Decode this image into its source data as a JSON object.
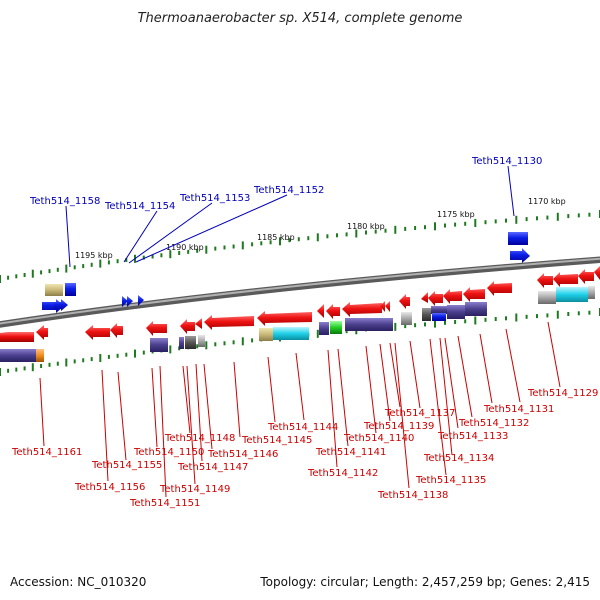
{
  "title": "Thermoanaerobacter sp. X514, complete genome",
  "accession": "Accession: NC_010320",
  "summary": "Topology: circular; Length: 2,457,259 bp; Genes: 2,415",
  "scale_labels": [
    "1170 kbp",
    "1175 kbp",
    "1180 kbp",
    "1185 kbp",
    "1190 kbp",
    "1195 kbp"
  ],
  "forward_genes": [
    "Teth514_1130",
    "Teth514_1152",
    "Teth514_1153",
    "Teth514_1154",
    "Teth514_1158"
  ],
  "reverse_genes": [
    "Teth514_1129",
    "Teth514_1131",
    "Teth514_1132",
    "Teth514_1133",
    "Teth514_1134",
    "Teth514_1135",
    "Teth514_1137",
    "Teth514_1138",
    "Teth514_1139",
    "Teth514_1140",
    "Teth514_1141",
    "Teth514_1142",
    "Teth514_1144",
    "Teth514_1145",
    "Teth514_1146",
    "Teth514_1147",
    "Teth514_1148",
    "Teth514_1149",
    "Teth514_1150",
    "Teth514_1151",
    "Teth514_1155",
    "Teth514_1156",
    "Teth514_1161"
  ],
  "colors": {
    "forward_gene": "#0a1ee6",
    "reverse_gene": "#ee1111",
    "backbone": "#808080",
    "tick": "#1e7a1e",
    "forward_label": "#0000bb",
    "reverse_label": "#cc0000",
    "domain_purple": "#4a3f8c",
    "domain_cyan": "#1fd0e8",
    "domain_tan": "#c8b878",
    "domain_green": "#22cc22",
    "domain_orange": "#f08c1e",
    "domain_grey": "#a8a8a8"
  }
}
